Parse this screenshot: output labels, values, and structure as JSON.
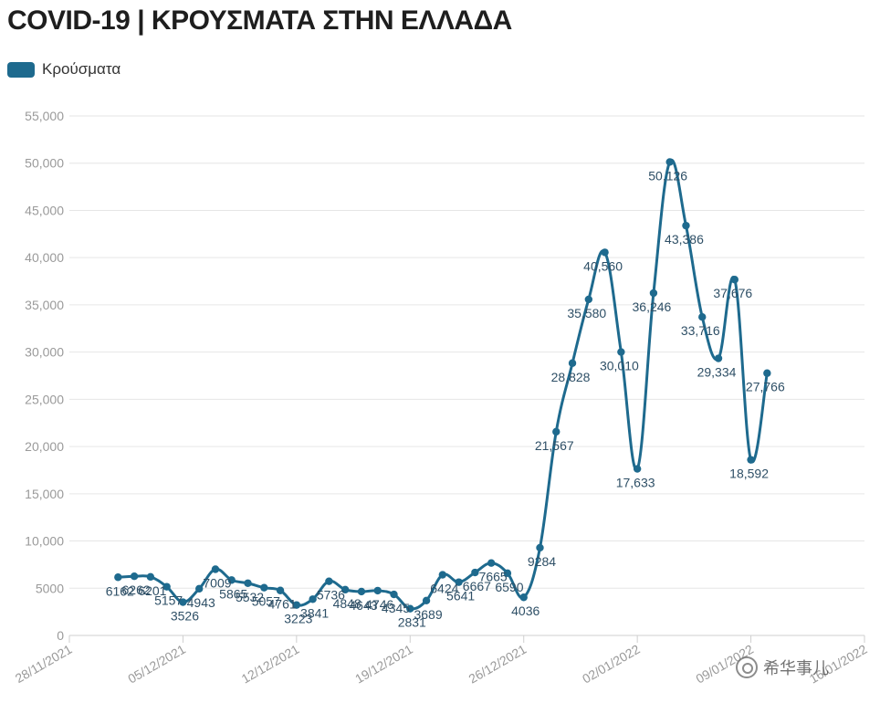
{
  "chart_data": {
    "type": "line",
    "title": "COVID-19 | ΚΡΟΥΣΜΑΤΑ ΣΤΗΝ ΕΛΛΑΔΑ",
    "legend": {
      "placement": "top-left",
      "entries": [
        "Κρούσματα"
      ]
    },
    "series_color": "#1e6a8e",
    "grid": true,
    "ylim": [
      0,
      55000
    ],
    "yticks": [
      "0",
      "5000",
      "10,000",
      "15,000",
      "20,000",
      "25,000",
      "30,000",
      "35,000",
      "40,000",
      "45,000",
      "50,000",
      "55,000"
    ],
    "ytick_values": [
      0,
      5000,
      10000,
      15000,
      20000,
      25000,
      30000,
      35000,
      40000,
      45000,
      50000,
      55000
    ],
    "xticks": [
      "28/11/2021",
      "05/12/2021",
      "12/12/2021",
      "19/12/2021",
      "26/12/2021",
      "02/01/2022",
      "09/01/2022",
      "16/01/2022"
    ],
    "xlim": [
      "2021-11-28",
      "2022-01-16"
    ],
    "series": [
      {
        "name": "Κρούσματα",
        "x": [
          "2021-12-01",
          "2021-12-02",
          "2021-12-03",
          "2021-12-04",
          "2021-12-05",
          "2021-12-06",
          "2021-12-07",
          "2021-12-08",
          "2021-12-09",
          "2021-12-10",
          "2021-12-11",
          "2021-12-12",
          "2021-12-13",
          "2021-12-14",
          "2021-12-15",
          "2021-12-16",
          "2021-12-17",
          "2021-12-18",
          "2021-12-19",
          "2021-12-20",
          "2021-12-21",
          "2021-12-22",
          "2021-12-23",
          "2021-12-24",
          "2021-12-25",
          "2021-12-26",
          "2021-12-27",
          "2021-12-28",
          "2021-12-29",
          "2021-12-30",
          "2021-12-31",
          "2022-01-01",
          "2022-01-02",
          "2022-01-03",
          "2022-01-04",
          "2022-01-05",
          "2022-01-06",
          "2022-01-07",
          "2022-01-08",
          "2022-01-09",
          "2022-01-10"
        ],
        "values": [
          6162,
          6262,
          6201,
          5157,
          3526,
          4943,
          7009,
          5865,
          5532,
          5057,
          4761,
          3223,
          3841,
          5736,
          4848,
          4643,
          4746,
          4345,
          2831,
          3689,
          6424,
          5641,
          6667,
          7665,
          6590,
          4036,
          9284,
          21567,
          28828,
          35580,
          40560,
          30010,
          17633,
          36246,
          50126,
          43386,
          33716,
          29334,
          37676,
          18592,
          27766
        ],
        "labels": [
          "6162",
          "6262",
          "6201",
          "5157",
          "3526",
          "4943",
          "7009",
          "5865",
          "5532",
          "5057",
          "4761",
          "3223",
          "3841",
          "5736",
          "4848",
          "4643",
          "4746",
          "4345",
          "2831",
          "3689",
          "6424",
          "5641",
          "6667",
          "7665",
          "6590",
          "4036",
          "9284",
          "21,567",
          "28,828",
          "35,580",
          "40,560",
          "30,010",
          "17,633",
          "36,246",
          "50,126",
          "43,386",
          "33,716",
          "29,334",
          "37,676",
          "18,592",
          "27,766"
        ]
      }
    ]
  },
  "watermark": {
    "text": "希华事儿",
    "icon": "wechat-icon"
  }
}
